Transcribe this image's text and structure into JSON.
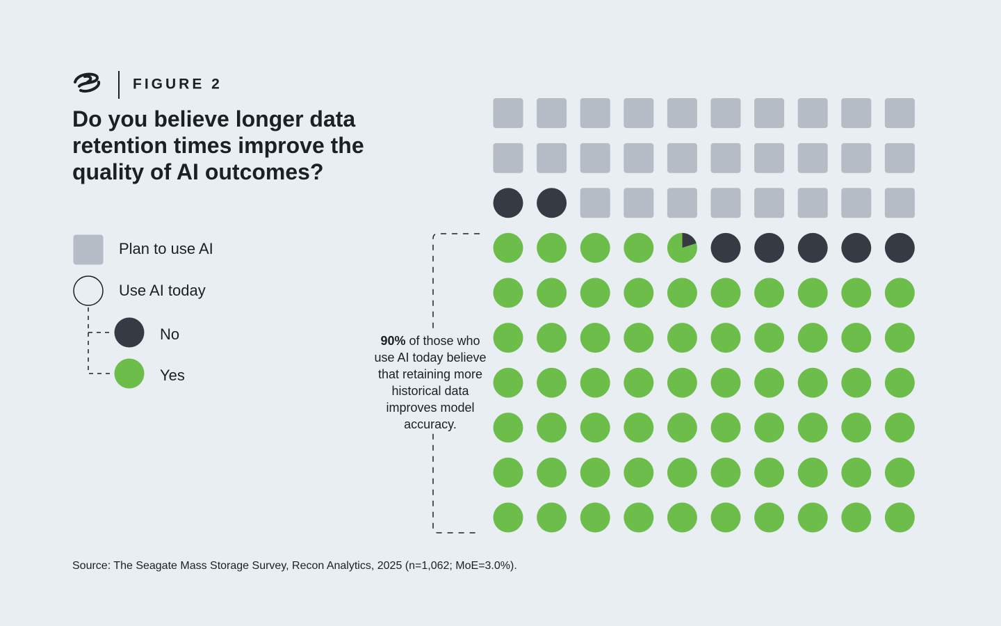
{
  "chart_data": {
    "type": "waffle",
    "figure_label": "FIGURE 2",
    "title": "Do you believe longer data retention times improve the quality of AI outcomes?",
    "series": [
      {
        "name": "Yes",
        "color": "#6cbd4a",
        "shape": "circle",
        "value": 64.8
      },
      {
        "name": "No",
        "color": "#353a43",
        "shape": "circle",
        "value": 7.2
      },
      {
        "name": "Plan to use AI",
        "color": "#b5bcc6",
        "shape": "square",
        "value": 28
      }
    ],
    "legend_group": "Use AI today",
    "annotation": {
      "highlight": "90%",
      "text": " of those who use AI today believe that retaining more historical data improves model accuracy."
    },
    "source": "Source: The Seagate Mass Storage Survey, Recon Analytics, 2025 (n=1,062; MoE=3.0%)."
  }
}
